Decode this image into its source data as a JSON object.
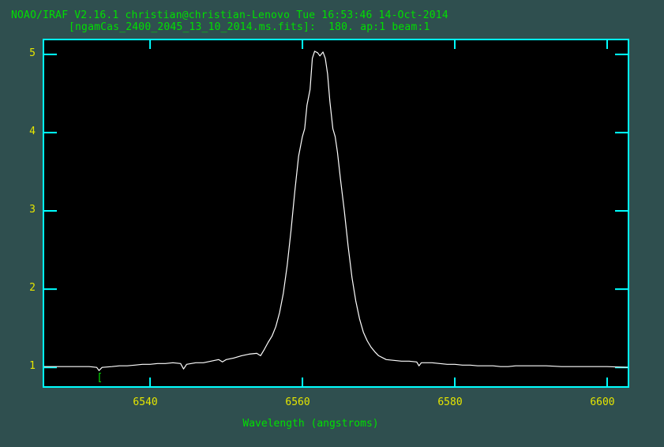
{
  "header": {
    "line1": "NOAO/IRAF V2.16.1 christian@christian-Lenovo Tue 16:53:46 14-Oct-2014",
    "line2": "[ngamCas_2400_2045_13_10_2014.ms.fits]:  180. ap:1 beam:1"
  },
  "colors": {
    "background": "#2f4f4f",
    "plot_background": "#000000",
    "axes": "#00ffff",
    "spectrum": "#ffffff",
    "tick_labels": "#e6e600",
    "title_text": "#00e000",
    "marker": "#00e000"
  },
  "chart_data": {
    "type": "line",
    "title": "NOAO/IRAF V2.16.1 christian@christian-Lenovo Tue 16:53:46 14-Oct-2014",
    "subtitle": "[ngamCas_2400_2045_13_10_2014.ms.fits]:  180. ap:1 beam:1",
    "xlabel": "Wavelength (angstroms)",
    "ylabel": "",
    "xlim": [
      6526.0,
      6602.8
    ],
    "ylim": [
      0.75,
      5.19
    ],
    "grid": false,
    "legend": "none",
    "x_ticks": [
      6540,
      6560,
      6580,
      6600
    ],
    "x_tick_labels": [
      "6540",
      "6560",
      "6580",
      "6600"
    ],
    "y_ticks": [
      1,
      2,
      3,
      4,
      5
    ],
    "y_tick_labels": [
      "1",
      "2",
      "3",
      "4",
      "5"
    ],
    "annotations": [
      {
        "type": "marker",
        "text": "[",
        "x": 6533.3,
        "y": 0.85
      }
    ],
    "series": [
      {
        "name": "spectrum",
        "x": [
          6526.0,
          6528.0,
          6530.0,
          6532.0,
          6533.0,
          6533.3,
          6533.7,
          6535.0,
          6536.0,
          6537.0,
          6538.0,
          6539.0,
          6540.0,
          6541.0,
          6542.0,
          6543.0,
          6544.0,
          6544.4,
          6544.8,
          6546.0,
          6547.0,
          6548.0,
          6549.0,
          6549.5,
          6550.0,
          6551.0,
          6552.0,
          6553.0,
          6554.0,
          6554.5,
          6555.0,
          6555.5,
          6556.0,
          6556.5,
          6557.0,
          6557.5,
          6558.0,
          6558.5,
          6559.0,
          6559.5,
          6560.0,
          6560.3,
          6560.6,
          6561.0,
          6561.3,
          6561.6,
          6562.0,
          6562.3,
          6562.7,
          6563.0,
          6563.3,
          6563.6,
          6564.0,
          6564.3,
          6564.6,
          6565.0,
          6565.5,
          6566.0,
          6566.5,
          6567.0,
          6567.5,
          6568.0,
          6568.5,
          6569.0,
          6569.5,
          6570.0,
          6571.0,
          6572.0,
          6573.0,
          6574.0,
          6575.0,
          6575.3,
          6575.6,
          6576.0,
          6577.0,
          6578.0,
          6579.0,
          6580.0,
          6581.0,
          6582.0,
          6583.0,
          6584.0,
          6585.0,
          6586.0,
          6587.0,
          6588.0,
          6590.0,
          6592.0,
          6594.0,
          6596.0,
          6598.0,
          6600.0,
          6602.8
        ],
        "y": [
          1.01,
          1.01,
          1.01,
          1.01,
          1.0,
          0.96,
          1.0,
          1.01,
          1.02,
          1.02,
          1.03,
          1.04,
          1.04,
          1.05,
          1.05,
          1.06,
          1.05,
          0.98,
          1.04,
          1.06,
          1.06,
          1.08,
          1.1,
          1.07,
          1.1,
          1.12,
          1.15,
          1.17,
          1.18,
          1.15,
          1.23,
          1.32,
          1.4,
          1.52,
          1.7,
          1.95,
          2.3,
          2.75,
          3.25,
          3.7,
          3.95,
          4.05,
          4.35,
          4.55,
          4.95,
          5.04,
          5.02,
          4.98,
          5.03,
          4.95,
          4.75,
          4.4,
          4.05,
          3.95,
          3.75,
          3.4,
          3.0,
          2.55,
          2.15,
          1.85,
          1.62,
          1.45,
          1.34,
          1.26,
          1.2,
          1.15,
          1.1,
          1.09,
          1.08,
          1.08,
          1.07,
          1.02,
          1.06,
          1.06,
          1.06,
          1.05,
          1.04,
          1.04,
          1.03,
          1.03,
          1.02,
          1.02,
          1.02,
          1.01,
          1.01,
          1.02,
          1.02,
          1.02,
          1.01,
          1.01,
          1.01,
          1.01,
          1.0
        ]
      }
    ]
  }
}
